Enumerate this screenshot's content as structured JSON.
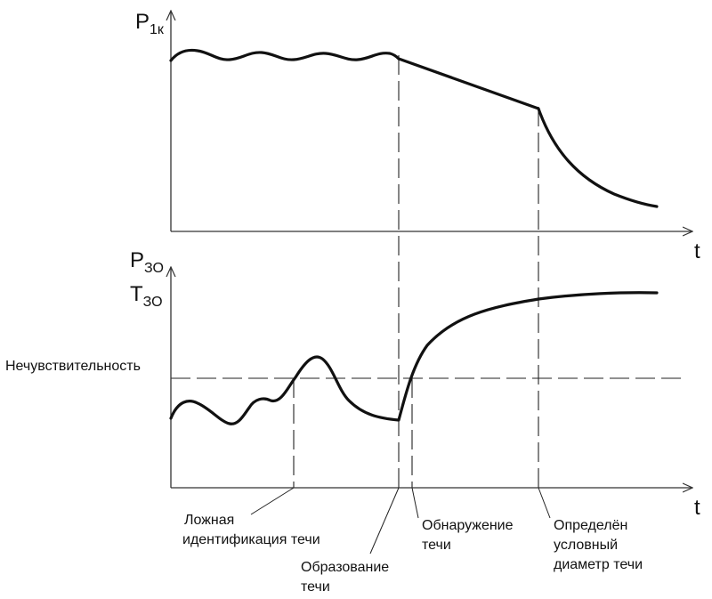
{
  "top_plot": {
    "y_axis": {
      "main": "P",
      "sub": "1к"
    },
    "x_axis": "t"
  },
  "bottom_plot": {
    "y_axis_line1": {
      "main": "P",
      "sub": "ЗО"
    },
    "y_axis_line2": {
      "main": "T",
      "sub": "ЗО"
    },
    "x_axis": "t",
    "threshold_label": "Нечувствительность"
  },
  "events": {
    "false_id": [
      "Ложная",
      "идентификация течи"
    ],
    "formation": [
      "Образование",
      "течи"
    ],
    "detection": [
      "Обнаружение",
      "течи"
    ],
    "diameter": [
      "Определён",
      "условный",
      "диаметр течи"
    ]
  },
  "colors": {
    "line": "#111111",
    "axis": "#333333"
  }
}
